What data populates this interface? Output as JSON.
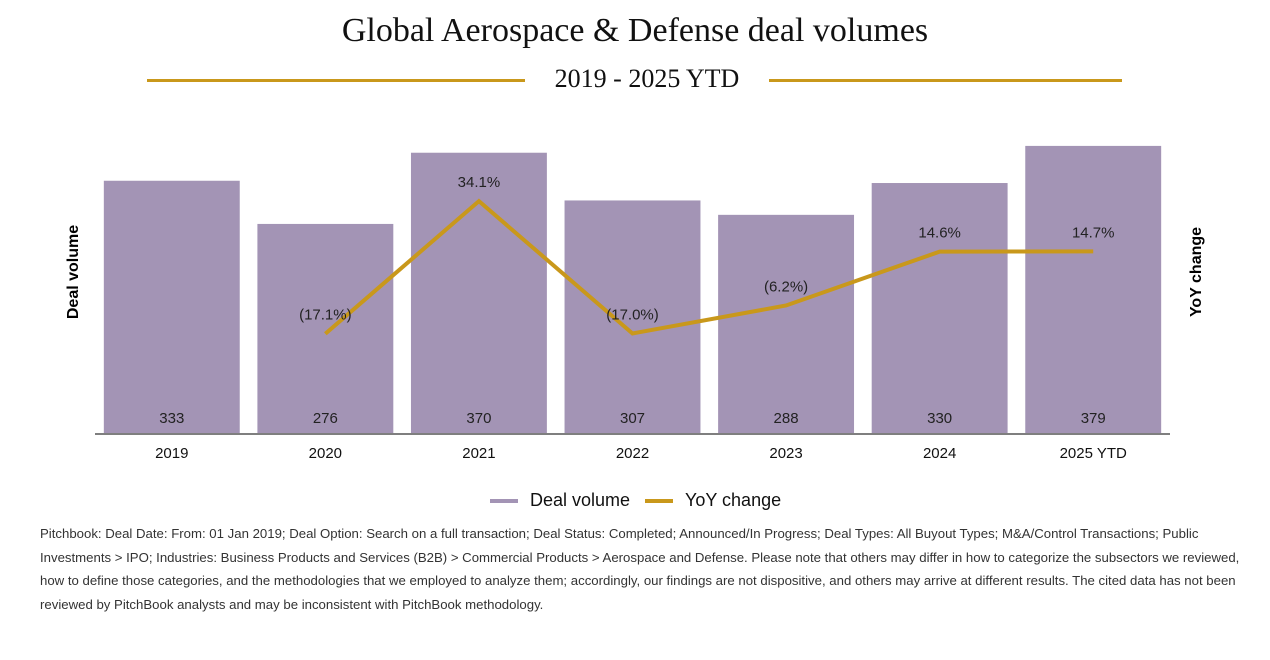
{
  "header": {
    "title": "Global Aerospace & Defense deal volumes",
    "subtitle": "2019 - 2025 YTD"
  },
  "colors": {
    "bar": "#a394b5",
    "line": "#c9981b",
    "rule": "#c9981b",
    "axis": "#555555"
  },
  "chart_data": {
    "type": "bar",
    "title": "Global Aerospace & Defense deal volumes",
    "subtitle": "2019 - 2025 YTD",
    "xlabel": "",
    "ylabel": "Deal volume",
    "y2label": "YoY change",
    "categories": [
      "2019",
      "2020",
      "2021",
      "2022",
      "2023",
      "2024",
      "2025 YTD"
    ],
    "ylim": [
      0,
      400
    ],
    "series": [
      {
        "name": "Deal volume",
        "type": "bar",
        "values": [
          333,
          276,
          370,
          307,
          288,
          330,
          379
        ],
        "labels": [
          "333",
          "276",
          "370",
          "307",
          "288",
          "330",
          "379"
        ]
      },
      {
        "name": "YoY change",
        "type": "line",
        "axis": "secondary",
        "values": [
          null,
          -17.1,
          34.1,
          -17.0,
          -6.2,
          14.6,
          14.7
        ],
        "labels": [
          "",
          "(17.1%)",
          "34.1%",
          "(17.0%)",
          "(6.2%)",
          "14.6%",
          "14.7%"
        ]
      }
    ],
    "y2lim": [
      -40,
      50
    ],
    "grid": false,
    "legend": "bottom-center"
  },
  "legend": {
    "items": [
      {
        "label": "Deal volume"
      },
      {
        "label": "YoY change"
      }
    ]
  },
  "footnote": "Pitchbook: Deal Date: From: 01 Jan 2019; Deal Option: Search on a full transaction; Deal Status: Completed; Announced/In Progress; Deal Types: All Buyout Types; M&A/Control Transactions; Public Investments > IPO; Industries: Business Products and Services (B2B) > Commercial Products > Aerospace and Defense. Please note that others may differ in how to categorize the subsectors we reviewed, how to define those categories, and the methodologies that we employed to analyze them; accordingly, our findings are not dispositive, and others may arrive at different results. The cited data has not been reviewed by PitchBook analysts and may be inconsistent with PitchBook methodology."
}
